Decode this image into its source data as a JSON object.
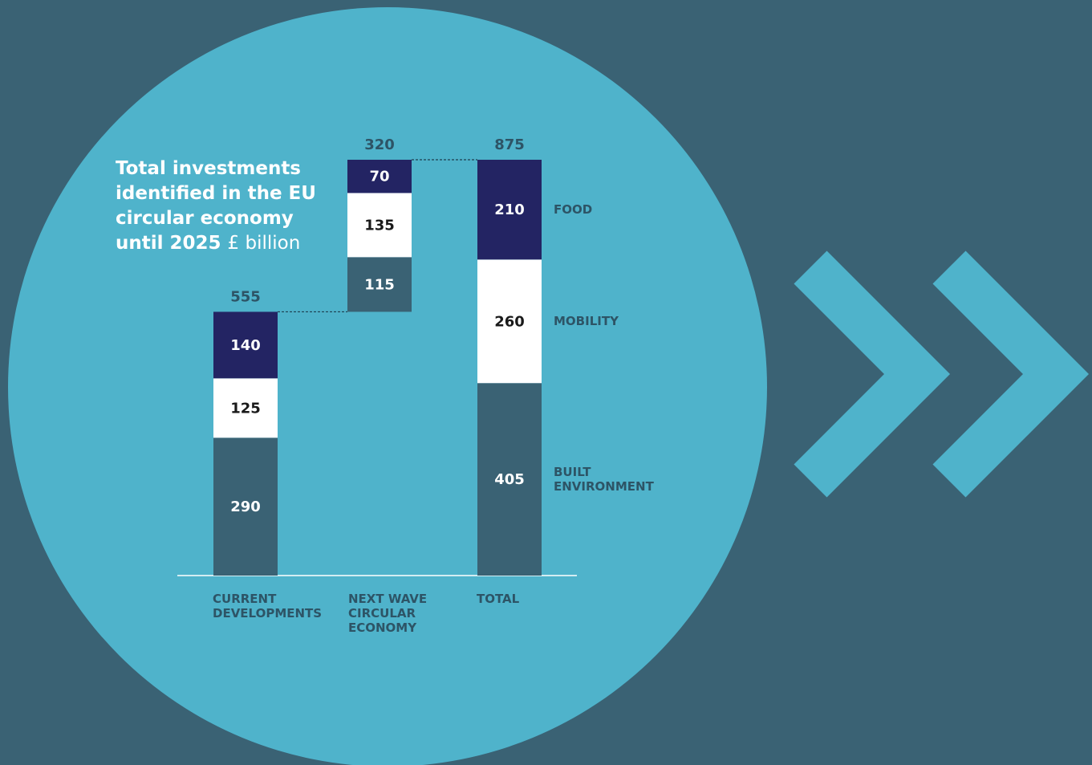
{
  "chart_data": {
    "type": "waterfall",
    "title": "Total investments identified in the EU circular economy until 2025",
    "unit": "£ billion",
    "categories": [
      "CURRENT DEVELOPMENTS",
      "NEXT WAVE CIRCULAR ECONOMY",
      "TOTAL"
    ],
    "totals": [
      555,
      320,
      875
    ],
    "series": [
      {
        "name": "BUILT ENVIRONMENT",
        "color": "#3a6274",
        "values": [
          290,
          115,
          405
        ]
      },
      {
        "name": "MOBILITY",
        "color": "#ffffff",
        "values": [
          125,
          135,
          260
        ]
      },
      {
        "name": "FOOD",
        "color": "#232463",
        "values": [
          140,
          70,
          210
        ]
      }
    ]
  }
}
